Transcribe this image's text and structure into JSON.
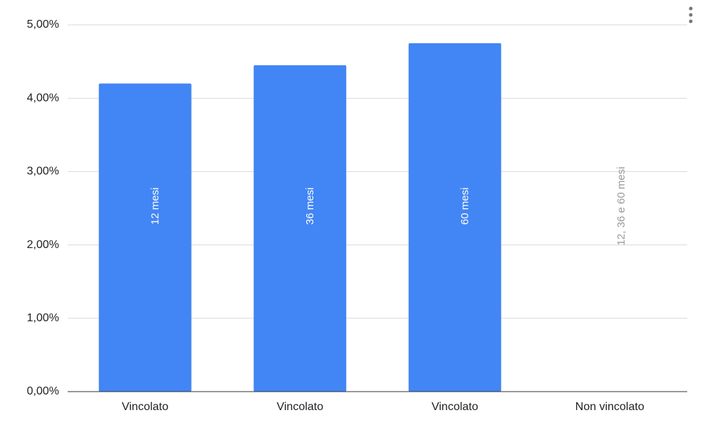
{
  "chart_data": {
    "type": "bar",
    "categories": [
      "Vincolato",
      "Vincolato",
      "Vincolato",
      "Non vincolato"
    ],
    "values": [
      4.2,
      4.45,
      4.75,
      0
    ],
    "bar_labels": [
      "12 mesi",
      "36 mesi",
      "60 mesi",
      "12, 36 e 60 mesi"
    ],
    "color": "#4285f4",
    "ylim": [
      0,
      5
    ],
    "yticks": [
      {
        "value": 0,
        "label": "0,00%"
      },
      {
        "value": 1,
        "label": "1,00%"
      },
      {
        "value": 2,
        "label": "2,00%"
      },
      {
        "value": 3,
        "label": "3,00%"
      },
      {
        "value": 4,
        "label": "4,00%"
      },
      {
        "value": 5,
        "label": "5,00%"
      }
    ],
    "grid": true
  }
}
